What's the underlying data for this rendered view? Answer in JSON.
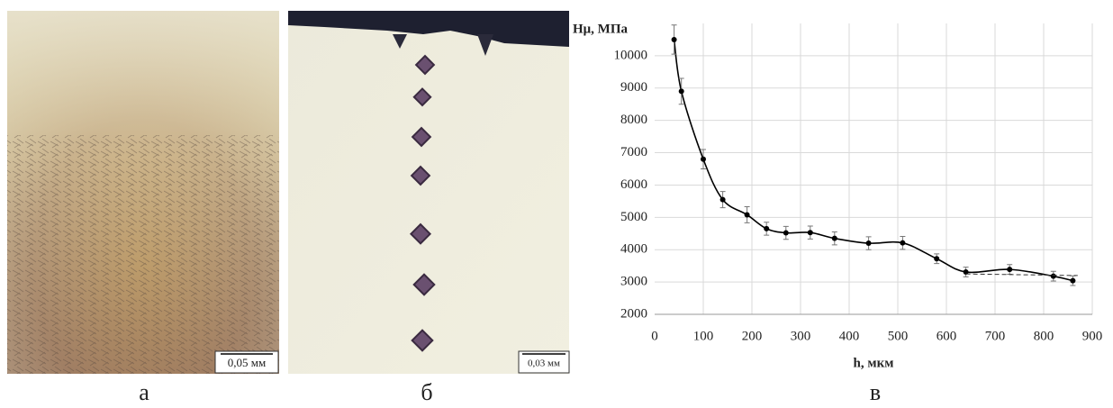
{
  "panels": [
    {
      "label": "а",
      "scale_bar": "0,05 мм"
    },
    {
      "label": "б",
      "scale_bar": "0,03 мм"
    }
  ],
  "chart_data": {
    "type": "line",
    "caption": "в",
    "y_label": "Hμ, МПа",
    "x_label": "h, мкм",
    "x": [
      40,
      55,
      100,
      140,
      190,
      230,
      270,
      320,
      370,
      440,
      510,
      580,
      640,
      730,
      820,
      860
    ],
    "series": [
      {
        "color": "#000000",
        "values": [
          10500,
          8900,
          6800,
          5550,
          5080,
          4650,
          4520,
          4530,
          4350,
          4200,
          4210,
          3720,
          3310,
          3390,
          3180,
          3040
        ],
        "errors": [
          450,
          400,
          300,
          250,
          250,
          200,
          200,
          200,
          200,
          200,
          200,
          150,
          150,
          150,
          150,
          150
        ]
      }
    ],
    "trend": {
      "x": [
        640,
        870
      ],
      "y": [
        3250,
        3200
      ]
    },
    "xlim": [
      0,
      900
    ],
    "xticks": [
      0,
      100,
      200,
      300,
      400,
      500,
      600,
      700,
      800,
      900
    ],
    "ylim": [
      2000,
      11000
    ],
    "yticks": [
      2000,
      3000,
      4000,
      5000,
      6000,
      7000,
      8000,
      9000,
      10000
    ],
    "grid": true
  }
}
